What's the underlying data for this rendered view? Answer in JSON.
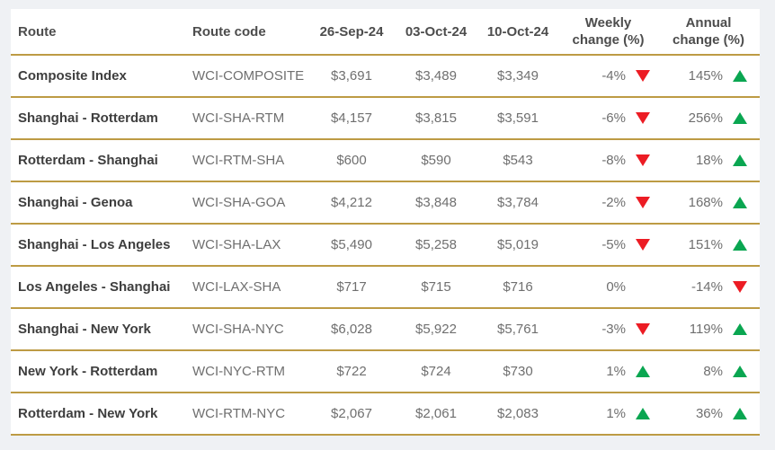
{
  "colors": {
    "bg": "#EFF1F4",
    "card": "#FFFFFF",
    "gold": "#BD9B44",
    "header_text": "#4D4D4D",
    "route_text": "#3E3E3E",
    "value_text": "#6F6F6F",
    "up": "#0AA651",
    "down": "#EC1C24"
  },
  "icons": {
    "up": "up-triangle-icon",
    "down": "down-triangle-icon"
  },
  "table": {
    "header": {
      "route": "Route",
      "code": "Route code",
      "d1": "26-Sep-24",
      "d2": "03-Oct-24",
      "d3": "10-Oct-24",
      "weekly": "Weekly\nchange (%)",
      "annual": "Annual\nchange (%)"
    },
    "rows": [
      {
        "route": "Composite Index",
        "code": "WCI-COMPOSITE",
        "d1": "$3,691",
        "d2": "$3,489",
        "d3": "$3,349",
        "weekly": "-4%",
        "weekly_dir": "down",
        "annual": "145%",
        "annual_dir": "up"
      },
      {
        "route": "Shanghai - Rotterdam",
        "code": "WCI-SHA-RTM",
        "d1": "$4,157",
        "d2": "$3,815",
        "d3": "$3,591",
        "weekly": "-6%",
        "weekly_dir": "down",
        "annual": "256%",
        "annual_dir": "up"
      },
      {
        "route": "Rotterdam - Shanghai",
        "code": "WCI-RTM-SHA",
        "d1": "$600",
        "d2": "$590",
        "d3": "$543",
        "weekly": "-8%",
        "weekly_dir": "down",
        "annual": "18%",
        "annual_dir": "up"
      },
      {
        "route": "Shanghai - Genoa",
        "code": "WCI-SHA-GOA",
        "d1": "$4,212",
        "d2": "$3,848",
        "d3": "$3,784",
        "weekly": "-2%",
        "weekly_dir": "down",
        "annual": "168%",
        "annual_dir": "up"
      },
      {
        "route": "Shanghai - Los Angeles",
        "code": "WCI-SHA-LAX",
        "d1": "$5,490",
        "d2": "$5,258",
        "d3": "$5,019",
        "weekly": "-5%",
        "weekly_dir": "down",
        "annual": "151%",
        "annual_dir": "up"
      },
      {
        "route": "Los Angeles - Shanghai",
        "code": "WCI-LAX-SHA",
        "d1": "$717",
        "d2": "$715",
        "d3": "$716",
        "weekly": "0%",
        "weekly_dir": "none",
        "annual": "-14%",
        "annual_dir": "down"
      },
      {
        "route": "Shanghai - New York",
        "code": "WCI-SHA-NYC",
        "d1": "$6,028",
        "d2": "$5,922",
        "d3": "$5,761",
        "weekly": "-3%",
        "weekly_dir": "down",
        "annual": "119%",
        "annual_dir": "up"
      },
      {
        "route": "New York - Rotterdam",
        "code": "WCI-NYC-RTM",
        "d1": "$722",
        "d2": "$724",
        "d3": "$730",
        "weekly": "1%",
        "weekly_dir": "up",
        "annual": "8%",
        "annual_dir": "up"
      },
      {
        "route": "Rotterdam - New York",
        "code": "WCI-RTM-NYC",
        "d1": "$2,067",
        "d2": "$2,061",
        "d3": "$2,083",
        "weekly": "1%",
        "weekly_dir": "up",
        "annual": "36%",
        "annual_dir": "up"
      }
    ]
  },
  "chart_data": {
    "type": "table",
    "columns": [
      "Route",
      "Route code",
      "26-Sep-24",
      "03-Oct-24",
      "10-Oct-24",
      "Weekly change (%)",
      "Annual change (%)"
    ],
    "rows": [
      [
        "Composite Index",
        "WCI-COMPOSITE",
        3691,
        3489,
        3349,
        -4,
        145
      ],
      [
        "Shanghai - Rotterdam",
        "WCI-SHA-RTM",
        4157,
        3815,
        3591,
        -6,
        256
      ],
      [
        "Rotterdam - Shanghai",
        "WCI-RTM-SHA",
        600,
        590,
        543,
        -8,
        18
      ],
      [
        "Shanghai - Genoa",
        "WCI-SHA-GOA",
        4212,
        3848,
        3784,
        -2,
        168
      ],
      [
        "Shanghai - Los Angeles",
        "WCI-SHA-LAX",
        5490,
        5258,
        5019,
        -5,
        151
      ],
      [
        "Los Angeles - Shanghai",
        "WCI-LAX-SHA",
        717,
        715,
        716,
        0,
        -14
      ],
      [
        "Shanghai - New York",
        "WCI-SHA-NYC",
        6028,
        5922,
        5761,
        -3,
        119
      ],
      [
        "New York - Rotterdam",
        "WCI-NYC-RTM",
        722,
        724,
        730,
        1,
        8
      ],
      [
        "Rotterdam - New York",
        "WCI-RTM-NYC",
        2067,
        2061,
        2083,
        1,
        36
      ]
    ]
  }
}
